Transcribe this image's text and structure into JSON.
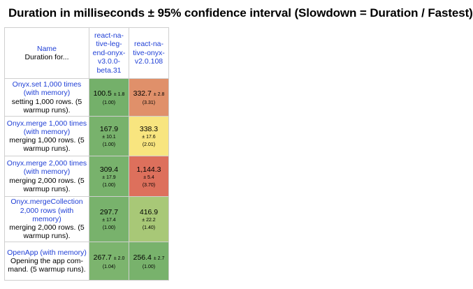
{
  "title": "Duration in milliseconds ± 95% confidence interval (Slowdown = Duration / Fastest)",
  "table": {
    "corner": {
      "name": "Name",
      "sub": "Duration for..."
    },
    "columns": [
      {
        "label": "react-na-tive-leg-end-onyx-v3.0.0-beta.31",
        "lines": [
          "react-na-",
          "tive-leg-",
          "end-onyx-",
          "v3.0.0-",
          "beta.31"
        ]
      },
      {
        "label": "react-na-tive-onyx-v2.0.108",
        "lines": [
          "react-na-",
          "tive-onyx-",
          "v2.0.108"
        ]
      }
    ],
    "rows": [
      {
        "title": "Onyx.set 1,000 times (with memory)",
        "desc": "setting 1,000 rows. (5 warmup runs).",
        "cells": [
          {
            "value": "100.5",
            "ci": "± 1.8",
            "ratio": "(1.00)",
            "color": "#74b06a"
          },
          {
            "value": "332.7",
            "ci": "± 2.8",
            "ratio": "(3.31)",
            "color": "#e0906a"
          }
        ]
      },
      {
        "title": "Onyx.merge 1,000 times (with memory)",
        "desc": "merging 1,000 rows. (5 warmup runs).",
        "cells": [
          {
            "value": "167.9",
            "ci": "± 10.1",
            "ratio": "(1.00)",
            "color": "#78b26c"
          },
          {
            "value": "338.3",
            "ci": "± 17.6",
            "ratio": "(2.01)",
            "color": "#f8e57f"
          }
        ]
      },
      {
        "title": "Onyx.merge 2,000 times (with memory)",
        "desc": "merging 2,000 rows. (5 warmup runs).",
        "cells": [
          {
            "value": "309.4",
            "ci": "± 17.9",
            "ratio": "(1.00)",
            "color": "#78b26c"
          },
          {
            "value": "1,144.3",
            "ci": "± 5.4",
            "ratio": "(3.70)",
            "color": "#dd705c"
          }
        ]
      },
      {
        "title": "Onyx.mergeCollection 2,000 rows (with memory)",
        "desc": "merging 2,000 rows. (5 warmup runs).",
        "cells": [
          {
            "value": "297.7",
            "ci": "± 17.4",
            "ratio": "(1.00)",
            "color": "#78b26c"
          },
          {
            "value": "416.9",
            "ci": "± 22.2",
            "ratio": "(1.40)",
            "color": "#a8c877"
          }
        ]
      },
      {
        "title": "OpenApp (with memory)",
        "desc": "Opening the app com-mand. (5 warmup runs).",
        "cells": [
          {
            "value": "267.7",
            "ci": "± 2.0",
            "ratio": "(1.04)",
            "color": "#7cb46e"
          },
          {
            "value": "256.4",
            "ci": "± 2.7",
            "ratio": "(1.00)",
            "color": "#78b26c"
          }
        ]
      }
    ]
  }
}
